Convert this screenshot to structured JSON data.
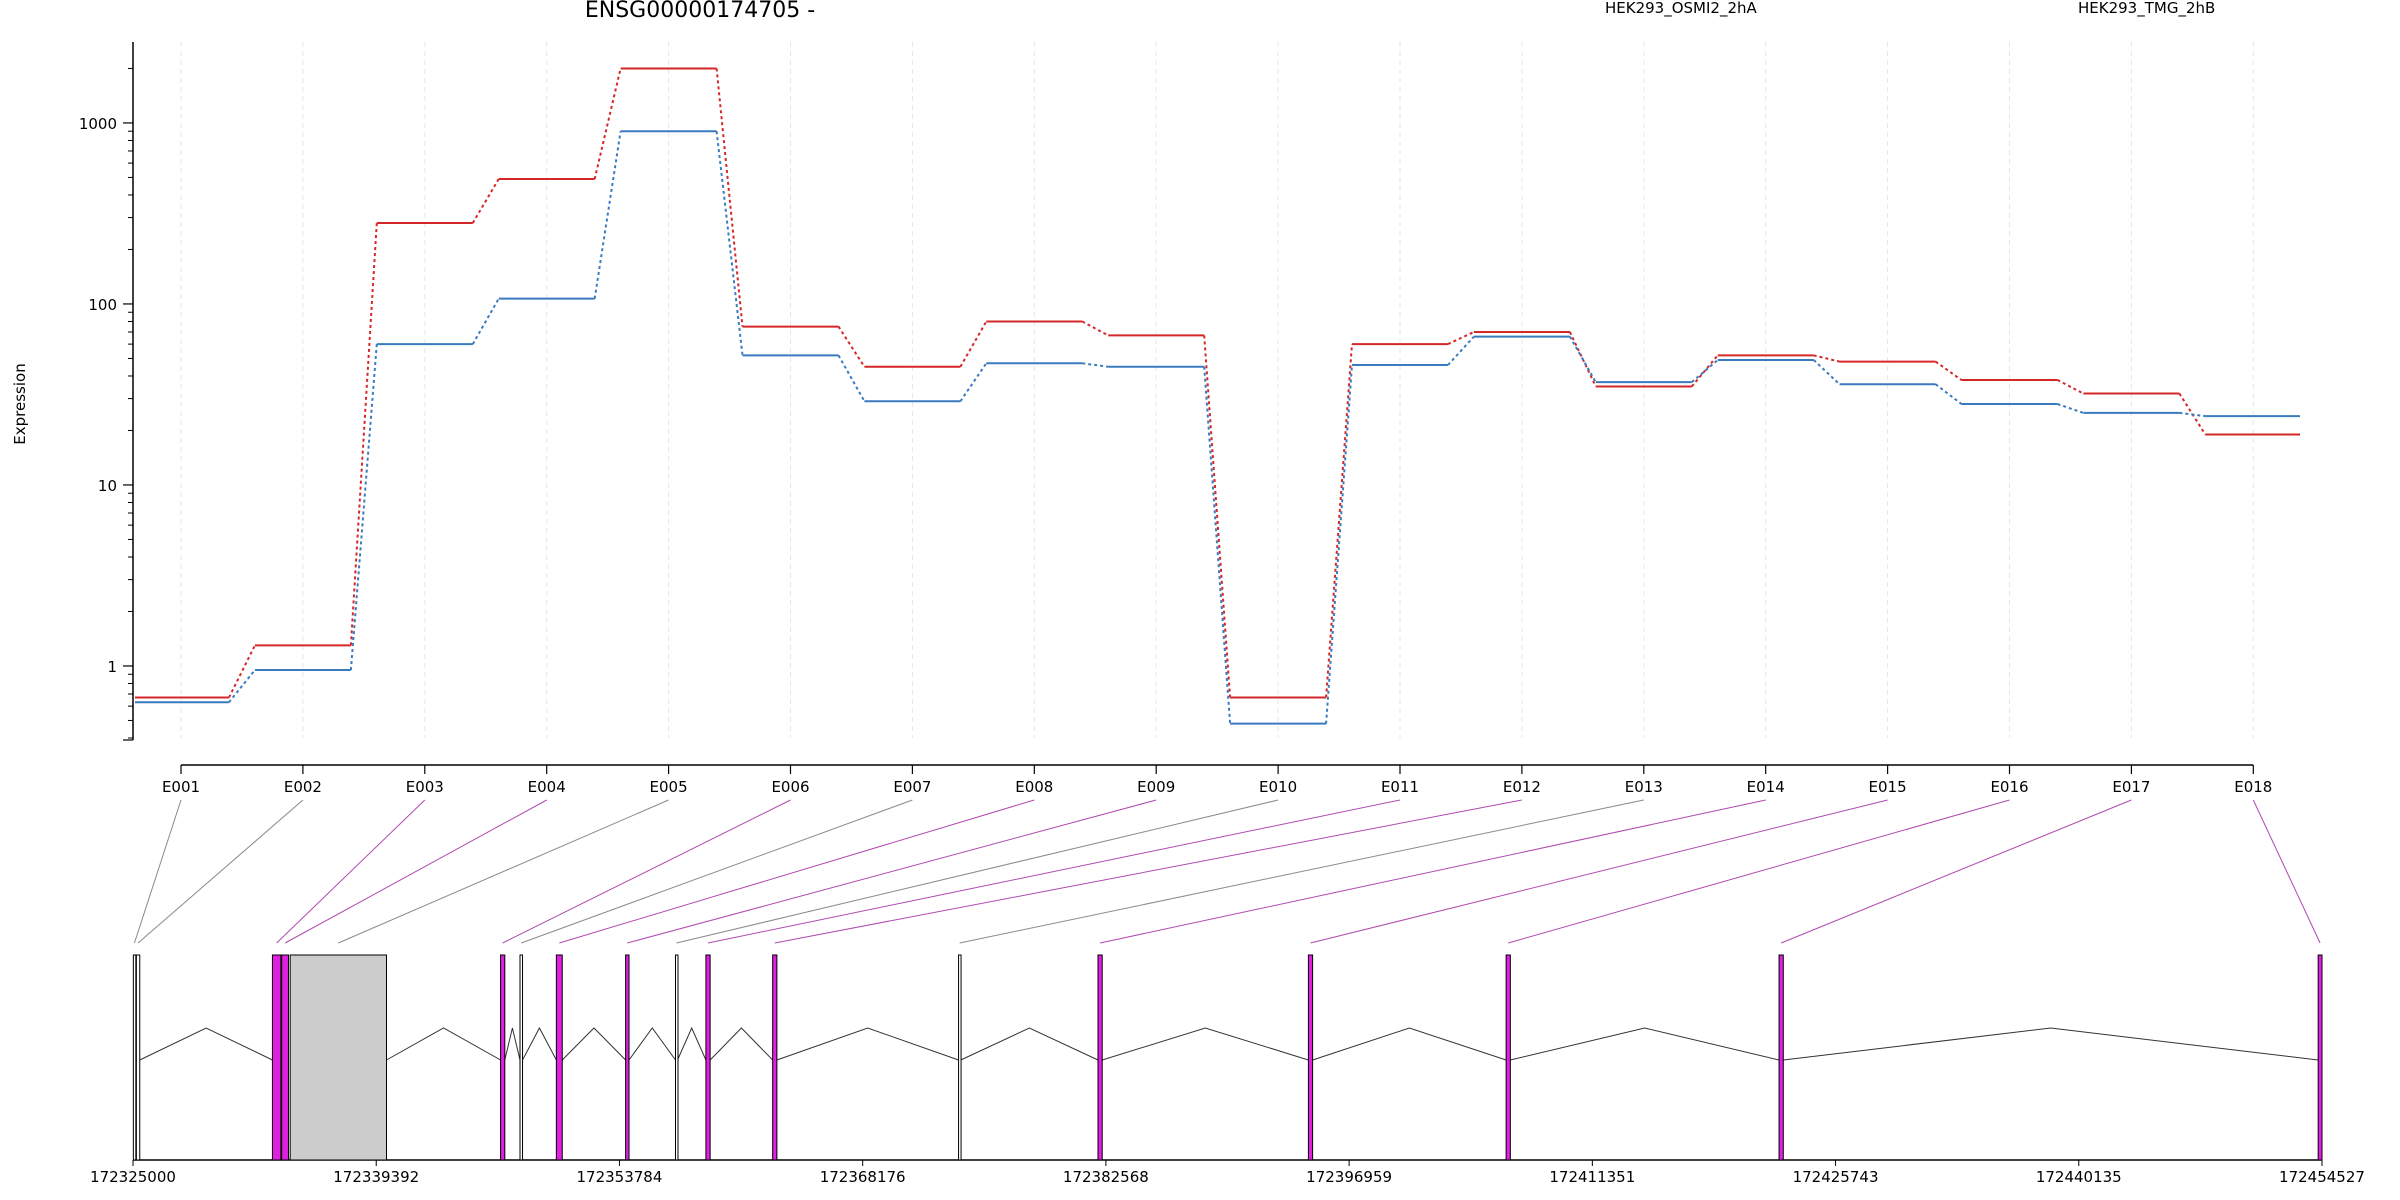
{
  "chart_data": {
    "type": "line",
    "title": "ENSG00000174705 -",
    "ylabel": "Expression",
    "yscale": "log",
    "ylim": [
      0.4,
      2800
    ],
    "yticks": [
      "1",
      "10",
      "100",
      "1000"
    ],
    "legend_placement": "top",
    "categories": [
      "E001",
      "E002",
      "E003",
      "E004",
      "E005",
      "E006",
      "E007",
      "E008",
      "E009",
      "E010",
      "E011",
      "E012",
      "E013",
      "E014",
      "E015",
      "E016",
      "E017",
      "E018"
    ],
    "series": [
      {
        "name": "HEK293_OSMI2_2hA",
        "color": "#d62728",
        "values": [
          0.67,
          1.3,
          280,
          490,
          2000,
          75,
          45,
          80,
          67,
          0.67,
          60,
          70,
          35,
          52,
          48,
          38,
          32,
          19
        ]
      },
      {
        "name": "HEK293_TMG_2hB",
        "color": "#3a7bbf",
        "values": [
          0.63,
          0.95,
          60,
          107,
          900,
          52,
          29,
          47,
          45,
          0.48,
          46,
          66,
          37,
          49,
          36,
          28,
          25,
          24
        ]
      }
    ],
    "gene_model": {
      "coordinate_ticks": [
        "172325000",
        "172339392",
        "172353784",
        "172368176",
        "172382568",
        "172396959",
        "172411351",
        "172425743",
        "172440135",
        "172454527"
      ],
      "range": [
        172325000,
        172454527
      ],
      "exons": [
        {
          "id": "E001",
          "start": 172325020,
          "end": 172325150,
          "color": "#ffffff"
        },
        {
          "id": "E002",
          "start": 172325200,
          "end": 172325400,
          "color": "#ffffff"
        },
        {
          "id": "E003",
          "start": 172333250,
          "end": 172333750,
          "color": "#e020e0"
        },
        {
          "id": "E004",
          "start": 172333800,
          "end": 172334200,
          "color": "#e020e0"
        },
        {
          "id": "E005",
          "start": 172334300,
          "end": 172340000,
          "color": "#cccccc"
        },
        {
          "id": "E006",
          "start": 172346750,
          "end": 172347000,
          "color": "#e020e0"
        },
        {
          "id": "E007",
          "start": 172347900,
          "end": 172348050,
          "color": "#ffffff"
        },
        {
          "id": "E008",
          "start": 172350050,
          "end": 172350400,
          "color": "#e020e0"
        },
        {
          "id": "E009",
          "start": 172354150,
          "end": 172354350,
          "color": "#e020e0"
        },
        {
          "id": "E010",
          "start": 172357100,
          "end": 172357220,
          "color": "#ffffff"
        },
        {
          "id": "E011",
          "start": 172358900,
          "end": 172359150,
          "color": "#e020e0"
        },
        {
          "id": "E012",
          "start": 172362850,
          "end": 172363100,
          "color": "#e020e0"
        },
        {
          "id": "E013",
          "start": 172373850,
          "end": 172373980,
          "color": "#ffffff"
        },
        {
          "id": "E014",
          "start": 172382100,
          "end": 172382350,
          "color": "#e020e0"
        },
        {
          "id": "E015",
          "start": 172394550,
          "end": 172394800,
          "color": "#e020e0"
        },
        {
          "id": "E016",
          "start": 172406250,
          "end": 172406500,
          "color": "#e020e0"
        },
        {
          "id": "E017",
          "start": 172422400,
          "end": 172422650,
          "color": "#e020e0"
        },
        {
          "id": "E018",
          "start": 172454300,
          "end": 172454527,
          "color": "#e020e0"
        }
      ]
    }
  }
}
